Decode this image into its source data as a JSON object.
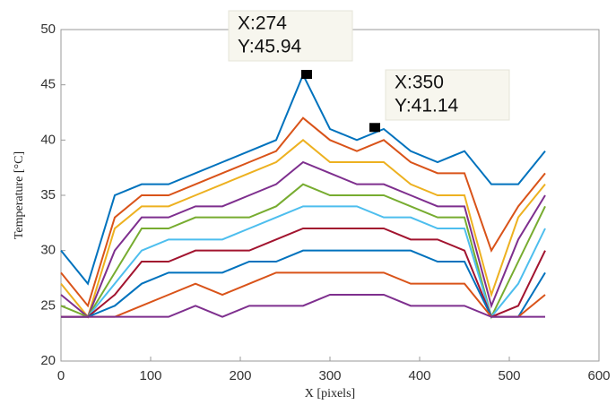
{
  "chart_data": {
    "type": "line",
    "xlabel": "X [pixels]",
    "ylabel": "Temperature [°C]",
    "xlim": [
      0,
      600
    ],
    "xticks": [
      0,
      100,
      200,
      300,
      400,
      500,
      600
    ],
    "ylim": [
      20,
      50
    ],
    "yticks": [
      20,
      25,
      30,
      35,
      40,
      45,
      50
    ],
    "grid": false,
    "x": [
      0,
      30,
      60,
      90,
      120,
      150,
      180,
      210,
      240,
      270,
      300,
      330,
      360,
      390,
      420,
      450,
      480,
      510,
      540
    ],
    "series": [
      {
        "color": "#0072BD",
        "values": [
          30,
          27,
          35,
          36,
          36,
          37,
          38,
          39,
          40,
          45.9,
          41,
          40,
          41,
          39,
          38,
          39,
          36,
          36,
          39
        ]
      },
      {
        "color": "#D95319",
        "values": [
          28,
          25,
          33,
          35,
          35,
          36,
          37,
          38,
          39,
          42,
          40,
          39,
          40,
          38,
          37,
          37,
          30,
          34,
          37
        ]
      },
      {
        "color": "#EDB120",
        "values": [
          27,
          24,
          32,
          34,
          34,
          35,
          36,
          37,
          38,
          40,
          38,
          38,
          38,
          36,
          35,
          35,
          26,
          33,
          36
        ]
      },
      {
        "color": "#7E2F8E",
        "values": [
          26,
          24,
          30,
          33,
          33,
          34,
          34,
          35,
          36,
          38,
          37,
          36,
          36,
          35,
          34,
          34,
          25,
          31,
          35
        ]
      },
      {
        "color": "#77AC30",
        "values": [
          25,
          24,
          28,
          32,
          32,
          33,
          33,
          33,
          34,
          36,
          35,
          35,
          35,
          34,
          33,
          33,
          24,
          29,
          34
        ]
      },
      {
        "color": "#4DBEEE",
        "values": [
          24,
          24,
          27,
          30,
          31,
          31,
          31,
          32,
          33,
          34,
          34,
          34,
          33,
          33,
          32,
          32,
          24,
          27,
          32
        ]
      },
      {
        "color": "#A2142F",
        "values": [
          24,
          24,
          26,
          29,
          29,
          30,
          30,
          30,
          31,
          32,
          32,
          32,
          32,
          31,
          31,
          30,
          24,
          25,
          30
        ]
      },
      {
        "color": "#0072BD",
        "values": [
          24,
          24,
          25,
          27,
          28,
          28,
          28,
          29,
          29,
          30,
          30,
          30,
          30,
          30,
          29,
          29,
          24,
          24,
          28
        ]
      },
      {
        "color": "#D95319",
        "values": [
          24,
          24,
          24,
          25,
          26,
          27,
          26,
          27,
          28,
          28,
          28,
          28,
          28,
          27,
          27,
          27,
          24,
          24,
          26
        ]
      },
      {
        "color": "#7E2F8E",
        "values": [
          24,
          24,
          24,
          24,
          24,
          25,
          24,
          25,
          25,
          25,
          26,
          26,
          26,
          25,
          25,
          25,
          24,
          24,
          24
        ]
      }
    ],
    "annotations": [
      {
        "x": 274,
        "y": 45.94,
        "label_x": "X:274",
        "label_y": "Y:45.94"
      },
      {
        "x": 350,
        "y": 41.14,
        "label_x": "X:350",
        "label_y": "Y:41.14"
      }
    ]
  }
}
